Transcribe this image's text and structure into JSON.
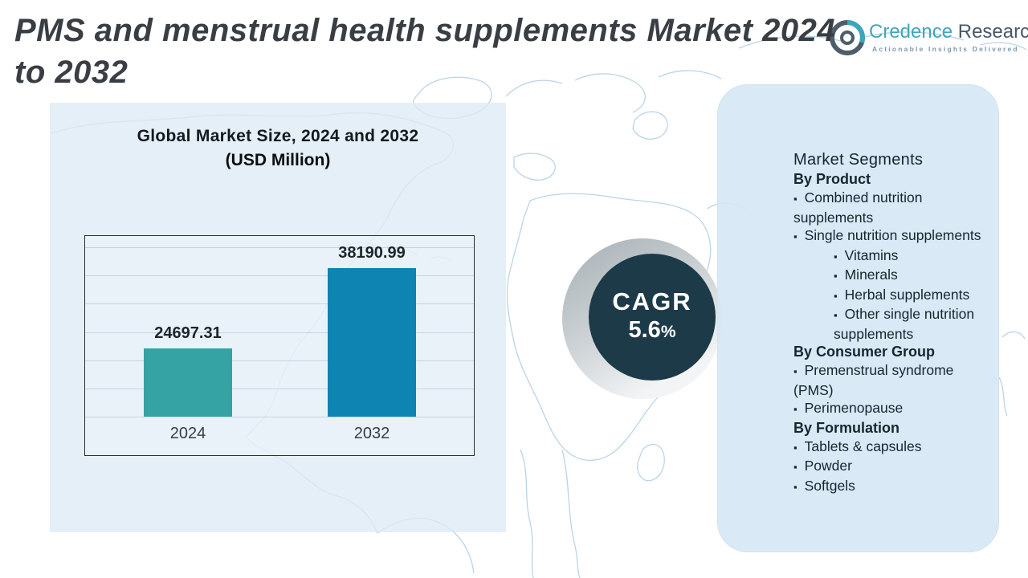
{
  "title": {
    "line1": "PMS and menstrual health supplements Market 2024",
    "line2": "to 2032"
  },
  "logo": {
    "brand_first": "Credence",
    "brand_second": " Research",
    "tagline": "Actionable Insights Delivered"
  },
  "chart_panel": {
    "title": "Global Market Size, 2024 and 2032",
    "subtitle": "(USD Million)"
  },
  "chart_data": {
    "type": "bar",
    "title": "Global Market Size, 2024 and 2032",
    "unit_label": "(USD Million)",
    "categories": [
      "2024",
      "2032"
    ],
    "values": [
      24697.31,
      38190.99
    ],
    "value_labels": [
      "24697.31",
      "38190.99"
    ],
    "series_colors": [
      "#35a3a3",
      "#0d84b2"
    ],
    "grid": true,
    "gridline_count": 7,
    "legend_position": "none",
    "y_axis_visible": false,
    "baseline_value_estimate": 13200
  },
  "cagr": {
    "label": "CAGR",
    "value": "5.6",
    "unit": "%"
  },
  "segments": {
    "heading": "Market Segments",
    "bullet_glyph": "▪",
    "groups": [
      {
        "title": "By Product",
        "items": [
          {
            "label": "Combined nutrition supplements",
            "level": 1
          },
          {
            "label": "Single nutrition supplements",
            "level": 1
          },
          {
            "label": "Vitamins",
            "level": 2
          },
          {
            "label": "Minerals",
            "level": 2
          },
          {
            "label": "Herbal supplements",
            "level": 2
          },
          {
            "label": "Other single nutrition  supplements",
            "level": 2
          }
        ]
      },
      {
        "title": "By Consumer Group",
        "items": [
          {
            "label": "Premenstrual syndrome (PMS)",
            "level": 1
          },
          {
            "label": "Perimenopause",
            "level": 1
          }
        ]
      },
      {
        "title": "By Formulation",
        "items": [
          {
            "label": "Tablets & capsules",
            "level": 1
          },
          {
            "label": "Powder",
            "level": 1
          },
          {
            "label": "Softgels",
            "level": 1
          }
        ]
      }
    ]
  },
  "colors": {
    "bar_2024": "#35a3a3",
    "bar_2032": "#0d84b2",
    "cagr_circle": "#1c3a47",
    "left_panel": "#e7f0f8",
    "right_panel": "#dceaf4",
    "map_line": "#aecde2",
    "title_text": "#393e44"
  }
}
